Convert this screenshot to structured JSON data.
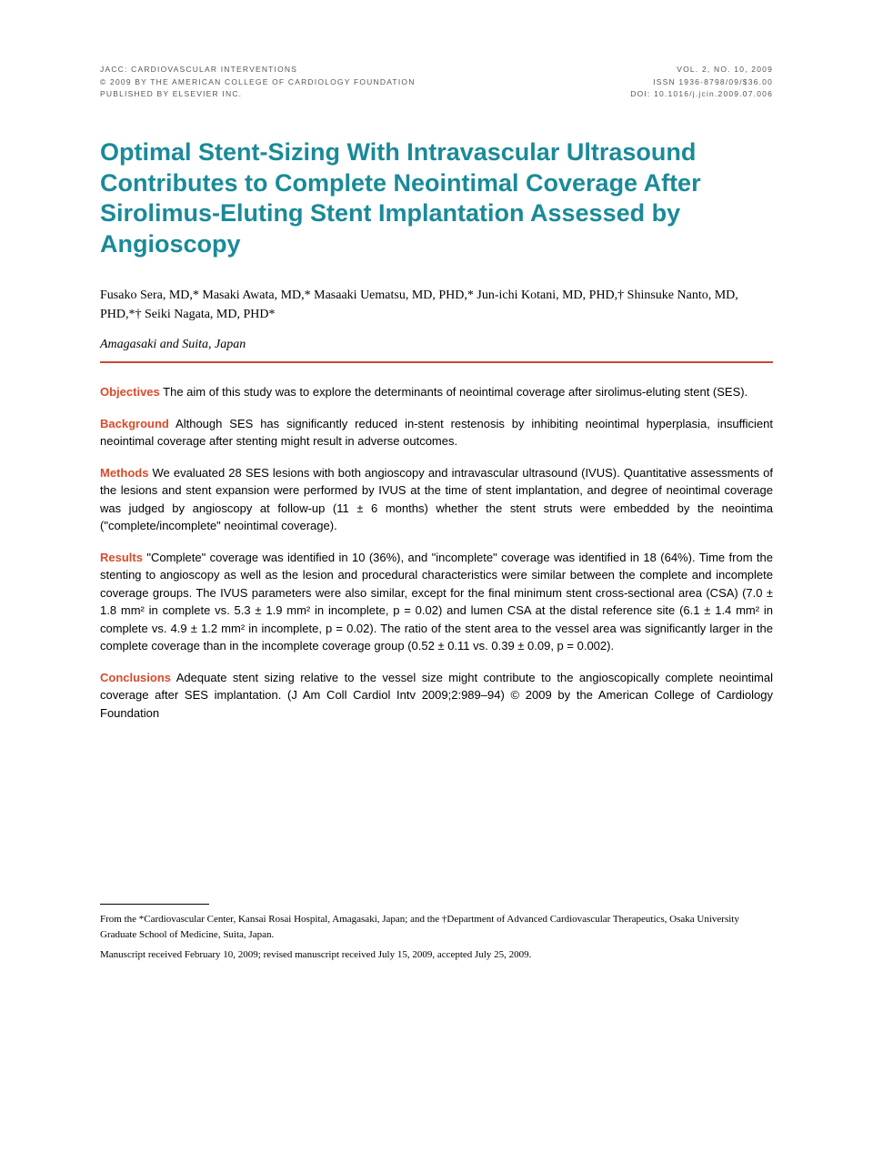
{
  "header": {
    "left": {
      "line1": "JACC: CARDIOVASCULAR INTERVENTIONS",
      "line2": "© 2009 BY THE AMERICAN COLLEGE OF CARDIOLOGY FOUNDATION",
      "line3": "PUBLISHED BY ELSEVIER INC."
    },
    "right": {
      "line1": "VOL. 2, NO. 10, 2009",
      "line2": "ISSN 1936-8798/09/$36.00",
      "line3": "DOI: 10.1016/j.jcin.2009.07.006"
    }
  },
  "title": "Optimal Stent-Sizing With Intravascular Ultrasound Contributes to Complete Neointimal Coverage After Sirolimus-Eluting Stent Implantation Assessed by Angioscopy",
  "authors": "Fusako Sera, MD,* Masaki Awata, MD,* Masaaki Uematsu, MD, PHD,* Jun-ichi Kotani, MD, PHD,† Shinsuke Nanto, MD, PHD,*† Seiki Nagata, MD, PHD*",
  "affiliation": "Amagasaki and Suita, Japan",
  "abstract": {
    "objectives": {
      "label": "Objectives",
      "text": " The aim of this study was to explore the determinants of neointimal coverage after sirolimus-eluting stent (SES)."
    },
    "background": {
      "label": "Background",
      "text": " Although SES has significantly reduced in-stent restenosis by inhibiting neointimal hyperplasia, insufficient neointimal coverage after stenting might result in adverse outcomes."
    },
    "methods": {
      "label": "Methods",
      "text": " We evaluated 28 SES lesions with both angioscopy and intravascular ultrasound (IVUS). Quantitative assessments of the lesions and stent expansion were performed by IVUS at the time of stent implantation, and degree of neointimal coverage was judged by angioscopy at follow-up (11 ± 6 months) whether the stent struts were embedded by the neointima (\"complete/incomplete\" neointimal coverage)."
    },
    "results": {
      "label": "Results",
      "text": " \"Complete\" coverage was identified in 10 (36%), and \"incomplete\" coverage was identified in 18 (64%). Time from the stenting to angioscopy as well as the lesion and procedural characteristics were similar between the complete and incomplete coverage groups. The IVUS parameters were also similar, except for the final minimum stent cross-sectional area (CSA) (7.0 ± 1.8 mm² in complete vs. 5.3 ± 1.9 mm² in incomplete, p = 0.02) and lumen CSA at the distal reference site (6.1 ± 1.4 mm² in complete vs. 4.9 ± 1.2 mm² in incomplete, p = 0.02). The ratio of the stent area to the vessel area was significantly larger in the complete coverage than in the incomplete coverage group (0.52 ± 0.11 vs. 0.39 ± 0.09, p = 0.002)."
    },
    "conclusions": {
      "label": "Conclusions",
      "text": " Adequate stent sizing relative to the vessel size might contribute to the angioscopically complete neointimal coverage after SES implantation.  (J Am Coll Cardiol Intv 2009;2:989–94) © 2009 by the American College of Cardiology Foundation"
    }
  },
  "footnotes": {
    "affiliation": "From the *Cardiovascular Center, Kansai Rosai Hospital, Amagasaki, Japan; and the †Department of Advanced Cardiovascular Therapeutics, Osaka University Graduate School of Medicine, Suita, Japan.",
    "manuscript": "Manuscript received February 10, 2009; revised manuscript received July 15, 2009, accepted July 25, 2009."
  },
  "colors": {
    "title_color": "#1a8a99",
    "label_color": "#d84a2a",
    "divider_color": "#c94a2e",
    "header_text_color": "#555555",
    "body_text_color": "#000000",
    "background": "#ffffff"
  }
}
